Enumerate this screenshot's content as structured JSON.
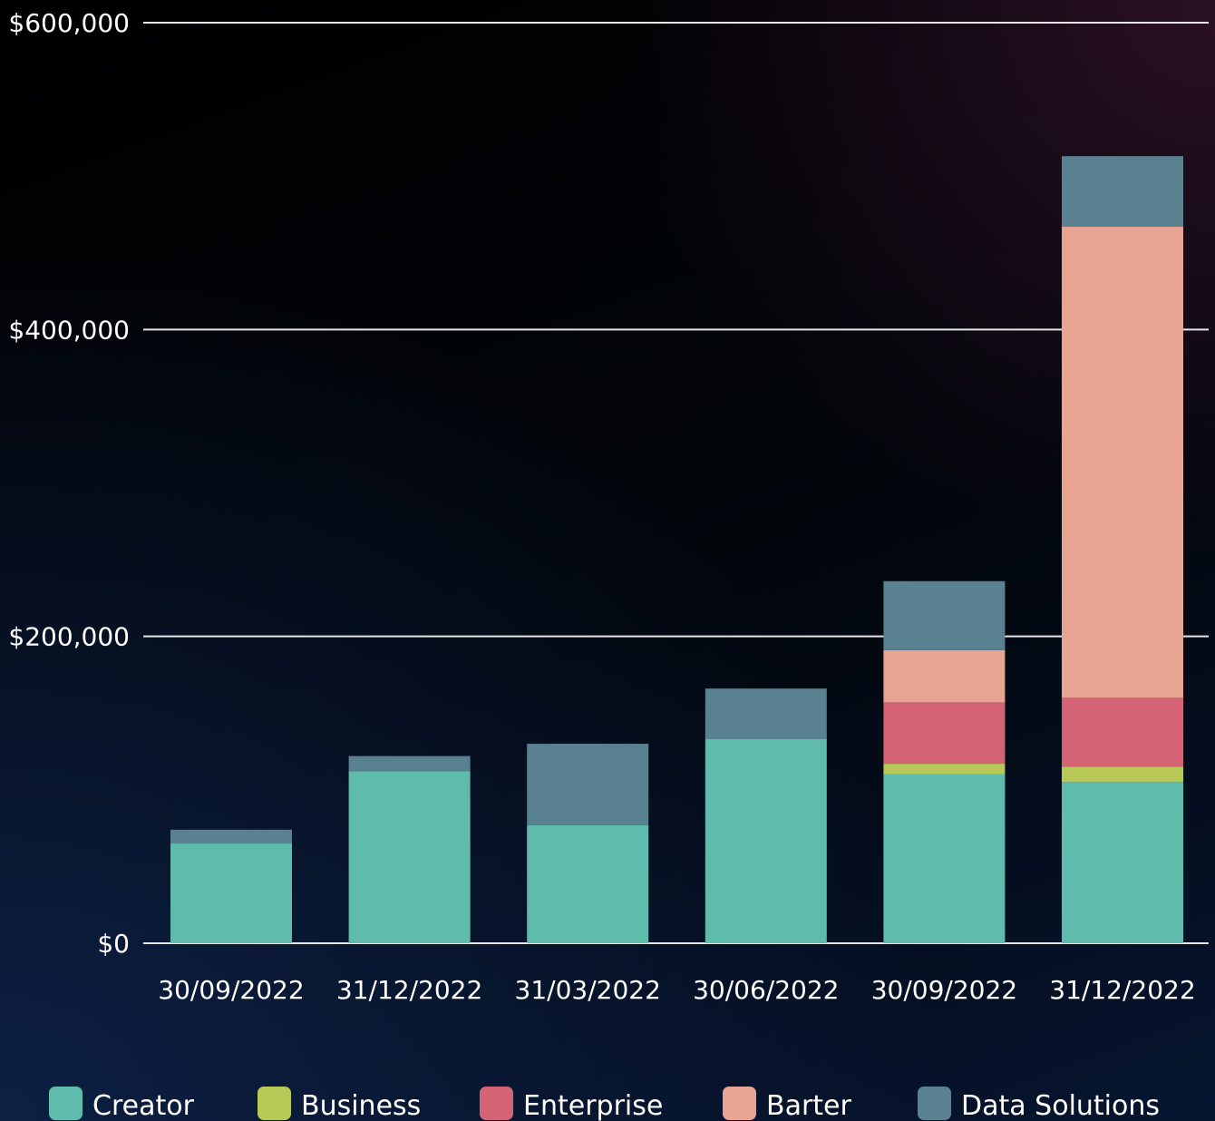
{
  "chart_data": {
    "type": "bar",
    "stacked": true,
    "title": "",
    "xlabel": "",
    "ylabel": "",
    "ylim": [
      0,
      600000
    ],
    "yticks": [
      0,
      200000,
      400000,
      600000
    ],
    "ytick_labels": [
      "$0",
      "$200,000",
      "$400,000",
      "$600,000"
    ],
    "grid": true,
    "legend_position": "bottom",
    "categories": [
      "30/09/2022",
      "31/12/2022",
      "31/03/2022",
      "30/06/2022",
      "30/09/2022",
      "31/12/2022"
    ],
    "series": [
      {
        "name": "Creator",
        "color": "#5fbcad",
        "values": [
          65000,
          112000,
          77000,
          133000,
          110000,
          105000
        ]
      },
      {
        "name": "Business",
        "color": "#b8c957",
        "values": [
          0,
          0,
          0,
          0,
          7000,
          10000
        ]
      },
      {
        "name": "Enterprise",
        "color": "#d46475",
        "values": [
          0,
          0,
          0,
          0,
          40000,
          45000
        ]
      },
      {
        "name": "Barter",
        "color": "#e8a493",
        "values": [
          0,
          0,
          0,
          0,
          34000,
          307000
        ]
      },
      {
        "name": "Data Solutions",
        "color": "#5a8190",
        "values": [
          9000,
          10000,
          53000,
          33000,
          45000,
          46000
        ]
      }
    ]
  }
}
